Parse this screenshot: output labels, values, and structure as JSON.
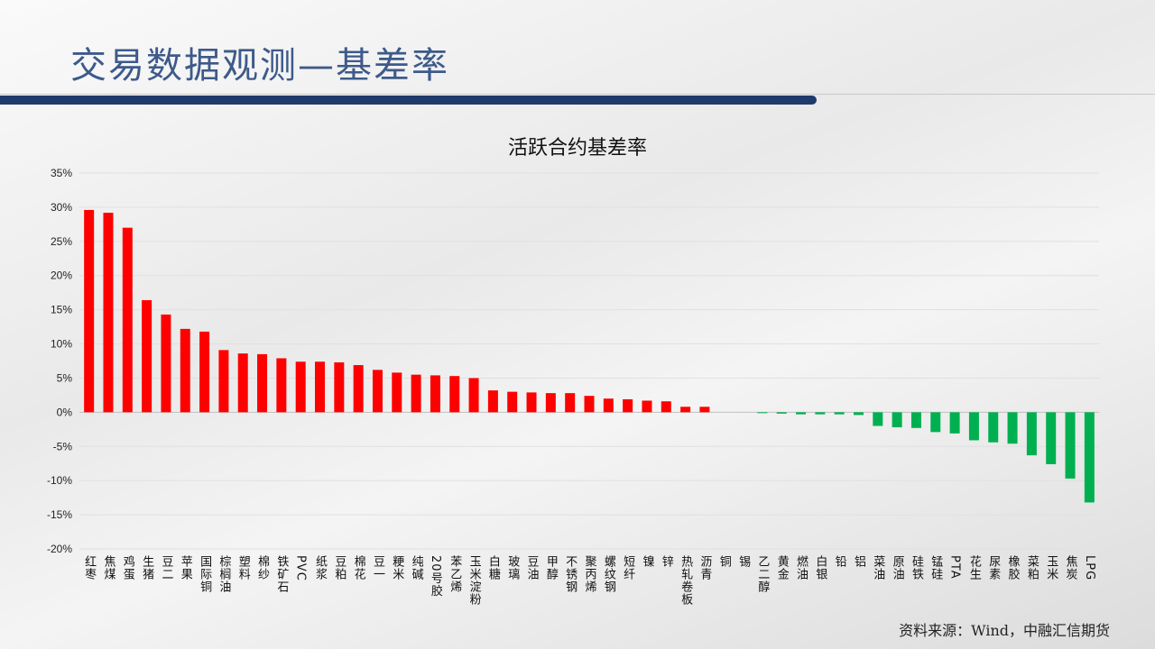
{
  "header": {
    "title": "交易数据观测—基差率"
  },
  "source": "资料来源：Wind，中融汇信期货",
  "colors": {
    "positive": "#ff0000",
    "negative": "#00b050",
    "header_bar": "#1f3a6b",
    "title": "#3d5a8a"
  },
  "chart_data": {
    "type": "bar",
    "title": "活跃合约基差率",
    "ylim": [
      -20,
      35
    ],
    "yticks": [
      -20,
      -15,
      -10,
      -5,
      0,
      5,
      10,
      15,
      20,
      25,
      30,
      35
    ],
    "ytick_labels": [
      "-20%",
      "-15%",
      "-10%",
      "-5%",
      "0%",
      "5%",
      "10%",
      "15%",
      "20%",
      "25%",
      "30%",
      "35%"
    ],
    "grid": true,
    "categories": [
      "红枣",
      "焦煤",
      "鸡蛋",
      "生猪",
      "豆二",
      "苹果",
      "国际铜",
      "棕榈油",
      "塑料",
      "棉纱",
      "铁矿石",
      "PVC",
      "纸浆",
      "豆粕",
      "棉花",
      "豆一",
      "粳米",
      "纯碱",
      "20号胶",
      "苯乙烯",
      "玉米淀粉",
      "白糖",
      "玻璃",
      "豆油",
      "甲醇",
      "不锈钢",
      "聚丙烯",
      "螺纹钢",
      "短纤",
      "镍",
      "锌",
      "热轧卷板",
      "沥青",
      "铜",
      "锡",
      "乙二醇",
      "黄金",
      "燃油",
      "白银",
      "铅",
      "铝",
      "菜油",
      "原油",
      "硅铁",
      "锰硅",
      "PTA",
      "花生",
      "尿素",
      "橡胶",
      "菜粕",
      "玉米",
      "焦炭",
      "LPG"
    ],
    "values": [
      29.6,
      29.2,
      27.0,
      16.4,
      14.3,
      12.2,
      11.8,
      9.1,
      8.6,
      8.5,
      7.9,
      7.4,
      7.4,
      7.3,
      6.9,
      6.2,
      5.8,
      5.5,
      5.4,
      5.3,
      5.0,
      3.2,
      3.0,
      2.9,
      2.8,
      2.8,
      2.4,
      2.0,
      1.9,
      1.7,
      1.6,
      0.8,
      0.8,
      0.0,
      0.0,
      -0.1,
      -0.2,
      -0.3,
      -0.3,
      -0.3,
      -0.4,
      -2.0,
      -2.2,
      -2.3,
      -2.9,
      -3.1,
      -4.1,
      -4.4,
      -4.6,
      -6.3,
      -7.6,
      -9.7,
      -13.2
    ]
  }
}
